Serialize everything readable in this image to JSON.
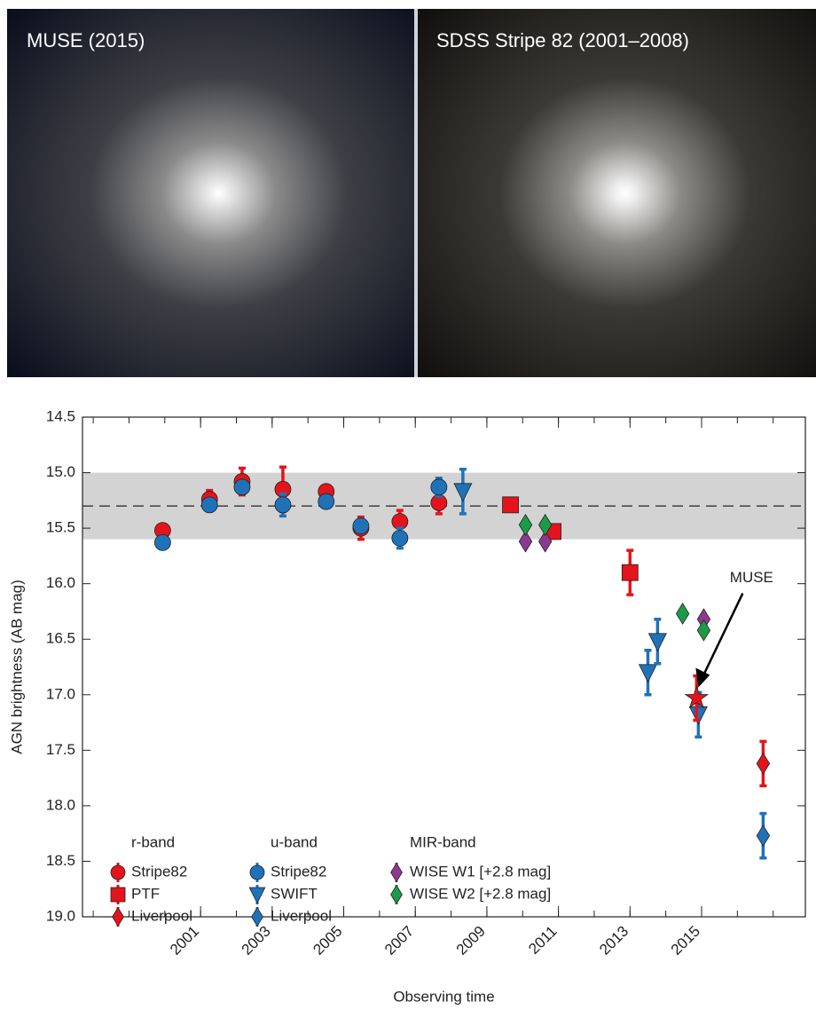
{
  "images": [
    {
      "label": "MUSE (2015)"
    },
    {
      "label": "SDSS Stripe 82 (2001–2008)"
    }
  ],
  "chart_data": {
    "type": "errorbar-scatter",
    "xlabel": "Observing time",
    "ylabel": "AGN brightness (AB mag)",
    "xlim": [
      1997.7,
      2017.9
    ],
    "ylim": [
      14.5,
      19.0
    ],
    "y_inverted": true,
    "xticks": [
      2001,
      2003,
      2005,
      2007,
      2009,
      2011,
      2013,
      2015
    ],
    "xminorticks": [
      1998,
      1999,
      2000,
      2001,
      2002,
      2003,
      2004,
      2005,
      2006,
      2007,
      2008,
      2009,
      2010,
      2011,
      2012,
      2013,
      2014,
      2015,
      2016,
      2017
    ],
    "yticks": [
      14.5,
      {
        "value": 15,
        "label": "15.0"
      },
      15.5,
      {
        "value": 16,
        "label": "16.0"
      },
      16.5,
      {
        "value": 17,
        "label": "17.0"
      },
      17.5,
      {
        "value": 18,
        "label": "18.0"
      },
      18.5,
      {
        "value": 19,
        "label": "19.0"
      }
    ],
    "band": {
      "from": 15.0,
      "to": 15.6,
      "color": "#d3d3d3"
    },
    "reference_line": 15.3,
    "groups": [
      {
        "name": "r-band",
        "series": [
          {
            "name": "Stripe82",
            "marker": "circle",
            "color": "#e3141c",
            "x": [
              1999.94,
              2001.25,
              2002.16,
              2003.3,
              2004.51,
              2005.48,
              2006.57,
              2007.66
            ],
            "values": [
              15.52,
              15.24,
              15.08,
              15.15,
              15.17,
              15.5,
              15.44,
              15.27
            ],
            "errors": [
              0.04,
              0.08,
              0.12,
              0.2,
              0.04,
              0.1,
              0.1,
              0.1
            ]
          },
          {
            "name": "PTF",
            "marker": "square",
            "color": "#e3141c",
            "x": [
              2009.66,
              2010.85,
              2013.0
            ],
            "values": [
              15.29,
              15.53,
              15.9
            ],
            "errors": [
              0.05,
              0.06,
              0.2
            ]
          },
          {
            "name": "Liverpool",
            "marker": "diamond",
            "color": "#e3141c",
            "x": [
              2016.72
            ],
            "values": [
              17.62
            ],
            "errors": [
              0.2
            ]
          }
        ]
      },
      {
        "name": "u-band",
        "series": [
          {
            "name": "Stripe82",
            "marker": "circle",
            "color": "#1f72b8",
            "x": [
              1999.94,
              2001.25,
              2002.16,
              2003.3,
              2004.51,
              2005.48,
              2006.57,
              2007.66
            ],
            "values": [
              15.63,
              15.29,
              15.13,
              15.29,
              15.26,
              15.48,
              15.59,
              15.13
            ],
            "errors": [
              0.03,
              0.03,
              0.04,
              0.1,
              0.03,
              0.06,
              0.09,
              0.08
            ]
          },
          {
            "name": "SWIFT",
            "marker": "triangle",
            "color": "#1f72b8",
            "x": [
              2008.33,
              2013.5,
              2013.77,
              2014.91
            ],
            "values": [
              15.17,
              16.8,
              16.52,
              17.18
            ],
            "errors": [
              0.2,
              0.2,
              0.2,
              0.2
            ]
          },
          {
            "name": "Liverpool",
            "marker": "diamond",
            "color": "#1f72b8",
            "x": [
              2016.72
            ],
            "values": [
              18.27
            ],
            "errors": [
              0.2
            ]
          }
        ]
      },
      {
        "name": "MIR-band",
        "series": [
          {
            "name": "WISE W1 [+2.8 mag]",
            "marker": "diamond",
            "color": "#8b3a8f",
            "x": [
              2010.08,
              2010.63,
              2015.06
            ],
            "values": [
              15.62,
              15.62,
              16.32
            ],
            "errors": [
              0.03,
              0.03,
              0.03
            ]
          },
          {
            "name": "WISE W2 [+2.8 mag]",
            "marker": "diamond",
            "color": "#1d9a47",
            "x": [
              2010.08,
              2010.63,
              2014.47,
              2015.06
            ],
            "values": [
              15.47,
              15.47,
              16.27,
              16.42
            ],
            "errors": [
              0.03,
              0.03,
              0.03,
              0.03
            ]
          }
        ]
      }
    ],
    "annotation": {
      "text": "MUSE",
      "marker": "star",
      "color": "#e3141c",
      "x": 2014.86,
      "value": 17.03,
      "error": 0.2
    }
  }
}
